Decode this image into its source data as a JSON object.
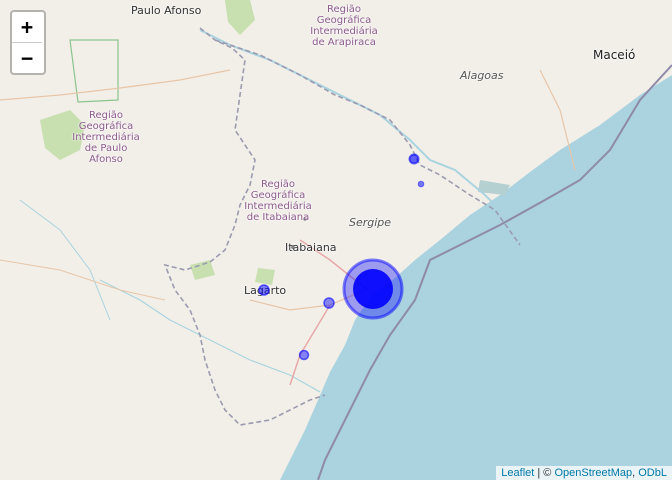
{
  "map": {
    "places": {
      "paulo_afonso": "Paulo Afonso",
      "maceio": "Maceió",
      "itabaiana": "Itabaiana",
      "lagarto": "Lagarto"
    },
    "regions": {
      "arapiraca": [
        "Região",
        "Geográfica",
        "Intermediária",
        "de Arapiraca"
      ],
      "paulo_afonso": [
        "Região",
        "Geográfica",
        "Intermediária",
        "de Paulo",
        "Afonso"
      ],
      "itabaiana": [
        "Região",
        "Geográfica",
        "Intermediária",
        "de Itabaiana"
      ]
    },
    "states": {
      "alagoas": "Alagoas",
      "sergipe": "Sergipe"
    },
    "colors": {
      "land": "#f2efe9",
      "water": "#aad3df",
      "marker": "#0000ff",
      "region_label": "#8c5a8c"
    }
  },
  "zoom": {
    "in": "+",
    "out": "−"
  },
  "attribution": {
    "leaflet": "Leaflet",
    "separator": " | © ",
    "osm": "OpenStreetMap",
    "sep2": ", ",
    "odbl": "ODbL"
  }
}
